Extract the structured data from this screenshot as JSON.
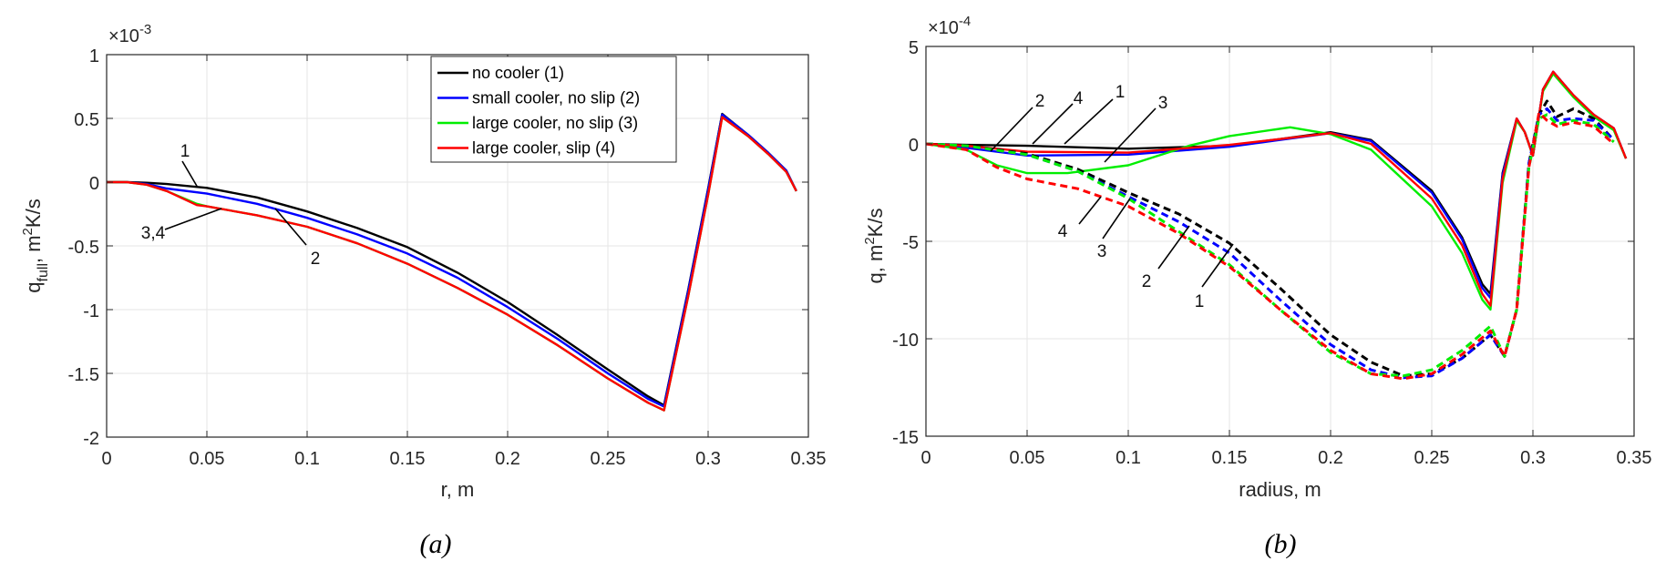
{
  "chart_data": [
    {
      "type": "line",
      "panel_caption": "(a)",
      "exponent_label": "×10",
      "exponent_power": "-3",
      "xlabel": "r, m",
      "ylabel_main": "q",
      "ylabel_sub": "full",
      "ylabel_rest": ", m",
      "ylabel_sup": "2",
      "ylabel_end": "K/s",
      "xlim": [
        0,
        0.35
      ],
      "ylim": [
        -2,
        1
      ],
      "grid": true,
      "xticks": [
        "0",
        "0.05",
        "0.1",
        "0.15",
        "0.2",
        "0.25",
        "0.3",
        "0.35"
      ],
      "yticks": [
        "-2",
        "-1.5",
        "-1",
        "-0.5",
        "0",
        "0.5",
        "1"
      ],
      "legend_position": "top-right",
      "legend": [
        {
          "label": "no cooler (1)",
          "color": "#000000"
        },
        {
          "label": "small cooler, no slip (2)",
          "color": "#0000ff"
        },
        {
          "label": "large cooler, no slip (3)",
          "color": "#00ee00"
        },
        {
          "label": "large cooler, slip (4)",
          "color": "#ff0000"
        }
      ],
      "annotations": [
        "1",
        "3,4",
        "2"
      ],
      "series": [
        {
          "name": "no cooler (1)",
          "color": "#000000",
          "style": "solid",
          "x": [
            0,
            0.01,
            0.02,
            0.03,
            0.05,
            0.075,
            0.1,
            0.125,
            0.15,
            0.175,
            0.2,
            0.225,
            0.25,
            0.27,
            0.278,
            0.29,
            0.3,
            0.307,
            0.32,
            0.33,
            0.339,
            0.344
          ],
          "y": [
            0,
            0,
            -0.005,
            -0.015,
            -0.045,
            -0.12,
            -0.23,
            -0.36,
            -0.51,
            -0.71,
            -0.94,
            -1.2,
            -1.47,
            -1.68,
            -1.75,
            -0.85,
            -0.05,
            0.535,
            0.37,
            0.23,
            0.09,
            -0.07
          ]
        },
        {
          "name": "small cooler, no slip (2)",
          "color": "#0000ff",
          "style": "solid",
          "x": [
            0,
            0.01,
            0.02,
            0.03,
            0.05,
            0.075,
            0.1,
            0.125,
            0.15,
            0.175,
            0.2,
            0.225,
            0.25,
            0.27,
            0.278,
            0.29,
            0.3,
            0.307,
            0.32,
            0.33,
            0.339,
            0.344
          ],
          "y": [
            0,
            0,
            -0.015,
            -0.05,
            -0.09,
            -0.17,
            -0.28,
            -0.41,
            -0.56,
            -0.75,
            -0.98,
            -1.23,
            -1.5,
            -1.7,
            -1.76,
            -0.86,
            -0.06,
            0.53,
            0.37,
            0.23,
            0.09,
            -0.07
          ]
        },
        {
          "name": "large cooler, no slip (3)",
          "color": "#00ee00",
          "style": "solid",
          "x": [
            0,
            0.01,
            0.02,
            0.03,
            0.045,
            0.05,
            0.075,
            0.1,
            0.125,
            0.15,
            0.175,
            0.2,
            0.225,
            0.25,
            0.27,
            0.278,
            0.29,
            0.3,
            0.307,
            0.32,
            0.33,
            0.339,
            0.344
          ],
          "y": [
            0,
            0,
            -0.02,
            -0.07,
            -0.17,
            -0.19,
            -0.26,
            -0.35,
            -0.48,
            -0.64,
            -0.83,
            -1.04,
            -1.28,
            -1.54,
            -1.73,
            -1.79,
            -0.9,
            -0.1,
            0.51,
            0.36,
            0.22,
            0.08,
            -0.07
          ]
        },
        {
          "name": "large cooler, slip (4)",
          "color": "#ff0000",
          "style": "solid",
          "x": [
            0,
            0.01,
            0.02,
            0.03,
            0.045,
            0.05,
            0.075,
            0.1,
            0.125,
            0.15,
            0.175,
            0.2,
            0.225,
            0.25,
            0.27,
            0.278,
            0.29,
            0.3,
            0.307,
            0.32,
            0.33,
            0.339,
            0.344
          ],
          "y": [
            0,
            0,
            -0.02,
            -0.07,
            -0.18,
            -0.19,
            -0.26,
            -0.35,
            -0.48,
            -0.64,
            -0.83,
            -1.04,
            -1.28,
            -1.54,
            -1.73,
            -1.79,
            -0.9,
            -0.1,
            0.51,
            0.36,
            0.22,
            0.08,
            -0.07
          ]
        }
      ]
    },
    {
      "type": "line",
      "panel_caption": "(b)",
      "exponent_label": "×10",
      "exponent_power": "-4",
      "xlabel": "radius, m",
      "ylabel_main": "q, m",
      "ylabel_sup": "2",
      "ylabel_end": "K/s",
      "xlim": [
        0,
        0.35
      ],
      "ylim": [
        -15,
        5
      ],
      "grid": true,
      "xticks": [
        "0",
        "0.05",
        "0.1",
        "0.15",
        "0.2",
        "0.25",
        "0.3",
        "0.35"
      ],
      "yticks": [
        "-15",
        "-10",
        "-5",
        "0",
        "5"
      ],
      "annotations_upper": [
        "2",
        "4",
        "1",
        "3"
      ],
      "annotations_lower": [
        "4",
        "3",
        "2",
        "1"
      ],
      "series": [
        {
          "name": "no cooler (1)",
          "color": "#000000",
          "style": "solid",
          "x": [
            0,
            0.02,
            0.05,
            0.1,
            0.15,
            0.2,
            0.22,
            0.25,
            0.265,
            0.275,
            0.279,
            0.285,
            0.292,
            0.296,
            0.3,
            0.305,
            0.31,
            0.32,
            0.33,
            0.34,
            0.346
          ],
          "y": [
            0,
            -0.05,
            -0.1,
            -0.25,
            -0.1,
            0.6,
            0.2,
            -2.4,
            -4.8,
            -7.2,
            -7.7,
            -1.5,
            1.3,
            0.6,
            -0.6,
            2.8,
            3.7,
            2.5,
            1.5,
            0.8,
            -0.75
          ]
        },
        {
          "name": "small cooler, no slip (2)",
          "color": "#0000ff",
          "style": "solid",
          "x": [
            0,
            0.02,
            0.05,
            0.1,
            0.15,
            0.2,
            0.22,
            0.25,
            0.265,
            0.275,
            0.279,
            0.285,
            0.292,
            0.296,
            0.3,
            0.305,
            0.31,
            0.32,
            0.33,
            0.34,
            0.346
          ],
          "y": [
            0,
            -0.2,
            -0.6,
            -0.55,
            -0.15,
            0.55,
            0.15,
            -2.5,
            -4.9,
            -7.4,
            -7.9,
            -1.6,
            1.3,
            0.6,
            -0.6,
            2.8,
            3.7,
            2.5,
            1.5,
            0.8,
            -0.75
          ]
        },
        {
          "name": "large cooler, no slip (3)",
          "color": "#00ee00",
          "style": "solid",
          "x": [
            0,
            0.02,
            0.035,
            0.05,
            0.07,
            0.1,
            0.13,
            0.15,
            0.18,
            0.2,
            0.22,
            0.25,
            0.265,
            0.275,
            0.279,
            0.285,
            0.292,
            0.296,
            0.3,
            0.305,
            0.31,
            0.32,
            0.33,
            0.34,
            0.346
          ],
          "y": [
            0,
            -0.3,
            -1.1,
            -1.5,
            -1.5,
            -1.1,
            -0.1,
            0.4,
            0.85,
            0.5,
            -0.3,
            -3.2,
            -5.6,
            -8.0,
            -8.5,
            -2.0,
            1.2,
            0.6,
            -0.6,
            2.7,
            3.6,
            2.4,
            1.4,
            0.7,
            -0.75
          ]
        },
        {
          "name": "large cooler, slip (4)",
          "color": "#ff0000",
          "style": "solid",
          "x": [
            0,
            0.02,
            0.05,
            0.1,
            0.15,
            0.2,
            0.22,
            0.25,
            0.265,
            0.275,
            0.279,
            0.285,
            0.292,
            0.296,
            0.3,
            0.305,
            0.31,
            0.32,
            0.33,
            0.34,
            0.346
          ],
          "y": [
            0,
            -0.1,
            -0.4,
            -0.45,
            -0.05,
            0.55,
            0.0,
            -2.8,
            -5.2,
            -7.7,
            -8.3,
            -1.8,
            1.3,
            0.6,
            -0.6,
            2.8,
            3.7,
            2.5,
            1.5,
            0.8,
            -0.75
          ]
        },
        {
          "name": "no cooler (1) dashed",
          "color": "#000000",
          "style": "dashed",
          "x": [
            0,
            0.02,
            0.05,
            0.075,
            0.1,
            0.125,
            0.15,
            0.175,
            0.2,
            0.22,
            0.236,
            0.25,
            0.265,
            0.279,
            0.286,
            0.292,
            0.298,
            0.303,
            0.307,
            0.312,
            0.32,
            0.33,
            0.34
          ],
          "y": [
            0,
            -0.1,
            -0.5,
            -1.3,
            -2.5,
            -3.6,
            -5.1,
            -7.4,
            -9.8,
            -11.2,
            -11.9,
            -11.8,
            -11.0,
            -9.8,
            -10.9,
            -8.5,
            -1.0,
            1.5,
            2.2,
            1.4,
            1.8,
            1.3,
            0.2
          ]
        },
        {
          "name": "small cooler, no slip (2) dashed",
          "color": "#0000ff",
          "style": "dashed",
          "x": [
            0,
            0.02,
            0.05,
            0.075,
            0.1,
            0.125,
            0.15,
            0.175,
            0.2,
            0.22,
            0.236,
            0.25,
            0.265,
            0.279,
            0.286,
            0.292,
            0.298,
            0.303,
            0.307,
            0.312,
            0.32,
            0.33,
            0.34
          ],
          "y": [
            0,
            -0.1,
            -0.55,
            -1.4,
            -2.7,
            -4.0,
            -5.6,
            -8.0,
            -10.3,
            -11.6,
            -12.0,
            -11.9,
            -11.0,
            -9.8,
            -10.9,
            -8.5,
            -1.0,
            1.5,
            1.8,
            1.2,
            1.3,
            1.2,
            0.2
          ]
        },
        {
          "name": "large cooler, no slip (3) dashed",
          "color": "#00ee00",
          "style": "dashed",
          "x": [
            0,
            0.02,
            0.05,
            0.075,
            0.1,
            0.125,
            0.15,
            0.175,
            0.2,
            0.22,
            0.236,
            0.25,
            0.265,
            0.279,
            0.286,
            0.292,
            0.298,
            0.303,
            0.307,
            0.312,
            0.32,
            0.33,
            0.34
          ],
          "y": [
            0,
            -0.1,
            -0.55,
            -1.4,
            -2.8,
            -4.5,
            -6.2,
            -8.5,
            -10.7,
            -11.8,
            -11.9,
            -11.6,
            -10.6,
            -9.35,
            -10.9,
            -8.5,
            -1.2,
            1.3,
            1.5,
            1.0,
            1.2,
            1.0,
            0.1
          ]
        },
        {
          "name": "large cooler, slip (4) dashed",
          "color": "#ff0000",
          "style": "dashed",
          "x": [
            0,
            0.02,
            0.035,
            0.05,
            0.075,
            0.1,
            0.125,
            0.15,
            0.175,
            0.2,
            0.22,
            0.236,
            0.25,
            0.265,
            0.279,
            0.286,
            0.292,
            0.298,
            0.303,
            0.307,
            0.312,
            0.32,
            0.33,
            0.34
          ],
          "y": [
            0,
            -0.3,
            -1.2,
            -1.8,
            -2.3,
            -3.2,
            -4.6,
            -6.3,
            -8.5,
            -10.6,
            -11.8,
            -12.05,
            -11.8,
            -10.8,
            -9.6,
            -10.9,
            -8.5,
            -1.2,
            1.6,
            1.2,
            0.9,
            1.1,
            0.9,
            0.0
          ]
        }
      ]
    }
  ]
}
